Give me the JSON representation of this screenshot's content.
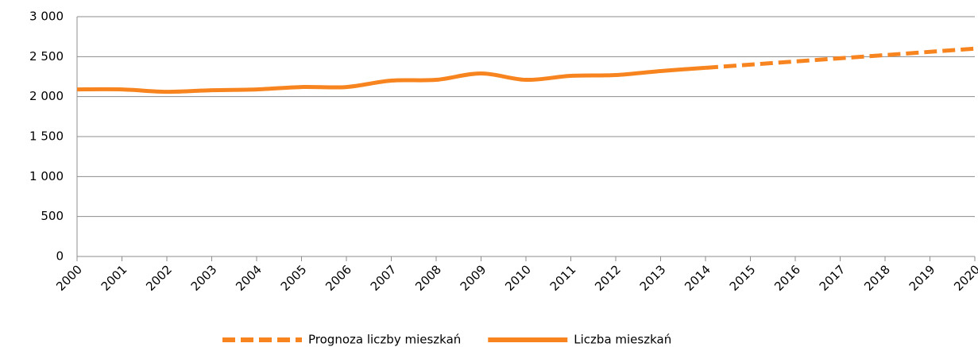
{
  "chart_data": {
    "type": "line",
    "categories": [
      "2000",
      "2001",
      "2002",
      "2003",
      "2004",
      "2005",
      "2006",
      "2007",
      "2008",
      "2009",
      "2010",
      "2011",
      "2012",
      "2013",
      "2014",
      "2015",
      "2016",
      "2017",
      "2018",
      "2019",
      "2020"
    ],
    "series": [
      {
        "name": "Prognoza liczby mieszkań",
        "color": "#f7841e",
        "dashed": true,
        "values": [
          null,
          null,
          null,
          null,
          null,
          null,
          null,
          null,
          null,
          null,
          null,
          null,
          null,
          null,
          2360,
          2400,
          2440,
          2480,
          2520,
          2560,
          2600
        ]
      },
      {
        "name": "Liczba mieszkań",
        "color": "#f7841e",
        "dashed": false,
        "values": [
          2090,
          2090,
          2060,
          2080,
          2090,
          2120,
          2120,
          2200,
          2210,
          2290,
          2210,
          2260,
          2270,
          2320,
          2360,
          null,
          null,
          null,
          null,
          null,
          null
        ]
      }
    ],
    "ylim": [
      0,
      3000
    ],
    "yticks": [
      0,
      500,
      {
        "value": 1000,
        "label": "1 000"
      },
      {
        "value": 1500,
        "label": "1 500"
      },
      {
        "value": 2000,
        "label": "2 000"
      },
      {
        "value": 2500,
        "label": "2 500"
      },
      {
        "value": 3000,
        "label": "3 000"
      }
    ],
    "grid": true,
    "legend": "bottom"
  }
}
